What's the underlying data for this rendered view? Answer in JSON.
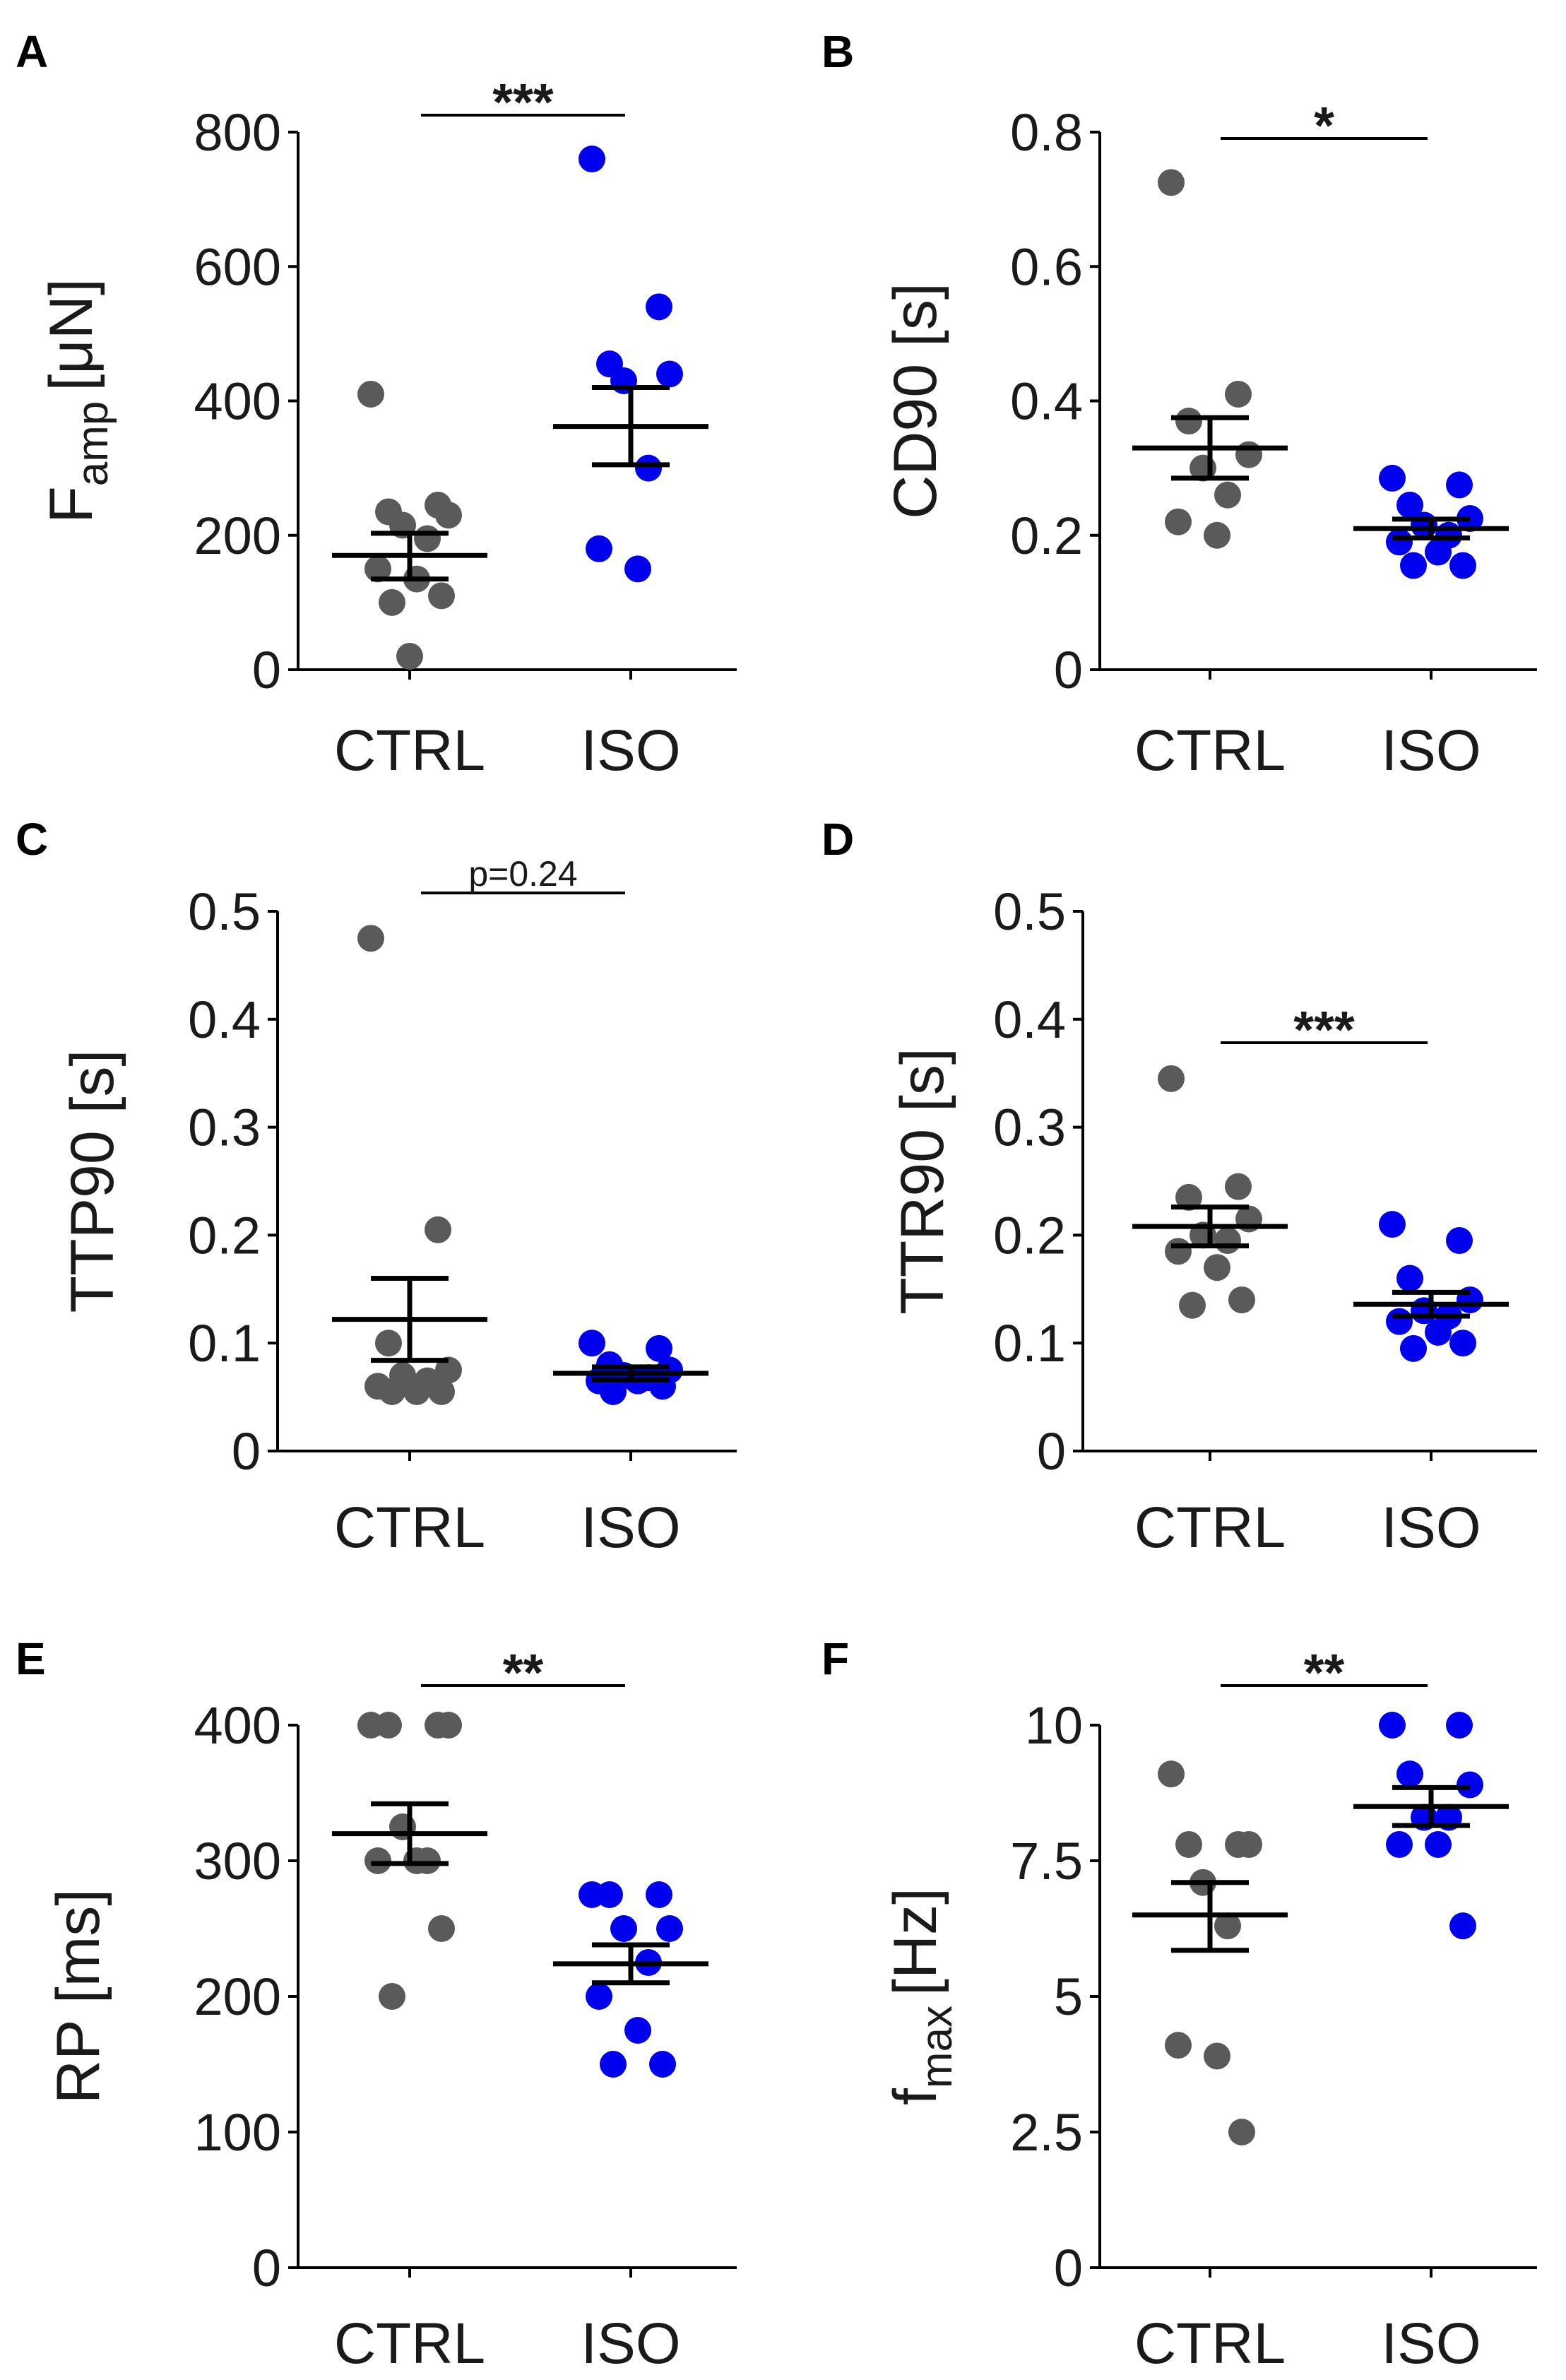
{
  "chart_data": [
    {
      "panel": "A",
      "type": "scatter",
      "ylabel": "F",
      "ylabel_sub": "amp",
      "ylabel_unit": "[μN]",
      "ylim": [
        0,
        800
      ],
      "yticks": [
        0,
        200,
        400,
        600,
        800
      ],
      "ytick_labels": [
        "0",
        "200",
        "400",
        "600",
        "800"
      ],
      "categories": [
        "CTRL",
        "ISO"
      ],
      "series": [
        {
          "name": "CTRL",
          "color": "#5a5a5a",
          "values": [
            410,
            245,
            235,
            230,
            215,
            195,
            150,
            135,
            110,
            100,
            20
          ],
          "mean": 170,
          "sem_low": 135,
          "sem_high": 203
        },
        {
          "name": "ISO",
          "color": "#0000ee",
          "values": [
            760,
            540,
            455,
            440,
            430,
            300,
            180,
            150
          ],
          "mean": 362,
          "sem_low": 305,
          "sem_high": 420
        }
      ],
      "significance": "***"
    },
    {
      "panel": "B",
      "type": "scatter",
      "ylabel": "CD90 [s]",
      "ylim": [
        0,
        0.8
      ],
      "yticks": [
        0,
        0.2,
        0.4,
        0.6,
        0.8
      ],
      "ytick_labels": [
        "0",
        "0.2",
        "0.4",
        "0.6",
        "0.8"
      ],
      "categories": [
        "CTRL",
        "ISO"
      ],
      "series": [
        {
          "name": "CTRL",
          "color": "#5a5a5a",
          "values": [
            0.725,
            0.41,
            0.37,
            0.32,
            0.3,
            0.26,
            0.22,
            0.2
          ],
          "mean": 0.33,
          "sem_low": 0.285,
          "sem_high": 0.375
        },
        {
          "name": "ISO",
          "color": "#0000ee",
          "values": [
            0.285,
            0.275,
            0.245,
            0.225,
            0.215,
            0.2,
            0.19,
            0.175,
            0.155,
            0.155
          ],
          "mean": 0.21,
          "sem_low": 0.196,
          "sem_high": 0.224
        }
      ],
      "significance": "*"
    },
    {
      "panel": "C",
      "type": "scatter",
      "ylabel": "TTP90 [s]",
      "ylim": [
        0,
        0.5
      ],
      "yticks": [
        0,
        0.1,
        0.2,
        0.3,
        0.4,
        0.5
      ],
      "ytick_labels": [
        "0",
        "0.1",
        "0.2",
        "0.3",
        "0.4",
        "0.5"
      ],
      "categories": [
        "CTRL",
        "ISO"
      ],
      "series": [
        {
          "name": "CTRL",
          "color": "#5a5a5a",
          "values": [
            0.475,
            0.205,
            0.1,
            0.075,
            0.07,
            0.065,
            0.06,
            0.055,
            0.055,
            0.055
          ],
          "mean": 0.122,
          "sem_low": 0.084,
          "sem_high": 0.16
        },
        {
          "name": "ISO",
          "color": "#0000ee",
          "values": [
            0.1,
            0.095,
            0.08,
            0.075,
            0.07,
            0.068,
            0.065,
            0.065,
            0.06,
            0.055
          ],
          "mean": 0.072,
          "sem_low": 0.066,
          "sem_high": 0.078
        }
      ],
      "significance": "p=0.24"
    },
    {
      "panel": "D",
      "type": "scatter",
      "ylabel": "TTR90 [s]",
      "ylim": [
        0,
        0.5
      ],
      "yticks": [
        0,
        0.1,
        0.2,
        0.3,
        0.4,
        0.5
      ],
      "ytick_labels": [
        "0",
        "0.1",
        "0.2",
        "0.3",
        "0.4",
        "0.5"
      ],
      "categories": [
        "CTRL",
        "ISO"
      ],
      "series": [
        {
          "name": "CTRL",
          "color": "#5a5a5a",
          "values": [
            0.345,
            0.245,
            0.235,
            0.215,
            0.2,
            0.195,
            0.185,
            0.17,
            0.14,
            0.135
          ],
          "mean": 0.208,
          "sem_low": 0.19,
          "sem_high": 0.226
        },
        {
          "name": "ISO",
          "color": "#0000ee",
          "values": [
            0.21,
            0.195,
            0.16,
            0.14,
            0.13,
            0.125,
            0.12,
            0.11,
            0.1,
            0.095
          ],
          "mean": 0.136,
          "sem_low": 0.125,
          "sem_high": 0.147
        }
      ],
      "significance": "***"
    },
    {
      "panel": "E",
      "type": "scatter",
      "ylabel": "RP [ms]",
      "ylim": [
        0,
        400
      ],
      "yticks": [
        0,
        100,
        200,
        300,
        400
      ],
      "ytick_labels": [
        "0",
        "100",
        "200",
        "300",
        "400"
      ],
      "categories": [
        "CTRL",
        "ISO"
      ],
      "series": [
        {
          "name": "CTRL",
          "color": "#5a5a5a",
          "values": [
            400,
            400,
            400,
            400,
            325,
            300,
            300,
            300,
            250,
            200
          ],
          "mean": 320,
          "sem_low": 298,
          "sem_high": 342
        },
        {
          "name": "ISO",
          "color": "#0000ee",
          "values": [
            275,
            275,
            275,
            250,
            250,
            225,
            200,
            175,
            150,
            150
          ],
          "mean": 224,
          "sem_low": 210,
          "sem_high": 238
        }
      ],
      "significance": "**"
    },
    {
      "panel": "F",
      "type": "scatter",
      "ylabel": "f",
      "ylabel_sub": "max",
      "ylabel_unit": "[Hz]",
      "ylim": [
        0,
        10
      ],
      "yticks": [
        0,
        2.5,
        5,
        7.5,
        10
      ],
      "ytick_labels": [
        "0",
        "2.5",
        "5",
        "7.5",
        "10"
      ],
      "categories": [
        "CTRL",
        "ISO"
      ],
      "series": [
        {
          "name": "CTRL",
          "color": "#5a5a5a",
          "values": [
            9.1,
            7.8,
            7.8,
            7.8,
            7.1,
            6.3,
            4.1,
            3.9,
            2.5
          ],
          "mean": 6.5,
          "sem_low": 5.85,
          "sem_high": 7.1
        },
        {
          "name": "ISO",
          "color": "#0000ee",
          "values": [
            10,
            10,
            9.1,
            8.9,
            8.3,
            8.3,
            7.8,
            7.8,
            6.3
          ],
          "mean": 8.5,
          "sem_low": 8.15,
          "sem_high": 8.85
        }
      ],
      "significance": "**"
    }
  ]
}
